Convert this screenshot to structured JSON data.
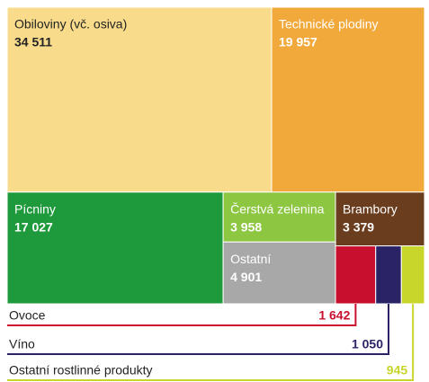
{
  "chart_data": {
    "type": "treemap",
    "categories": [
      "Obiloviny (vč. osiva)",
      "Technické plodiny",
      "Pícniny",
      "Čerstvá zelenina",
      "Brambory",
      "Ostatní",
      "Ovoce",
      "Víno",
      "Ostatní rostlinné produkty"
    ],
    "values": [
      34511,
      19957,
      17027,
      3958,
      3379,
      4901,
      1642,
      1050,
      945
    ],
    "value_labels": [
      "34 511",
      "19 957",
      "17 027",
      "3 958",
      "3 379",
      "4 901",
      "1 642",
      "1 050",
      "945"
    ],
    "colors": [
      "#f8dc8c",
      "#f2a93c",
      "#1e9a3c",
      "#8dc640",
      "#6a3d1f",
      "#a8a8a8",
      "#c8102e",
      "#2a2466",
      "#c8d62c"
    ]
  }
}
